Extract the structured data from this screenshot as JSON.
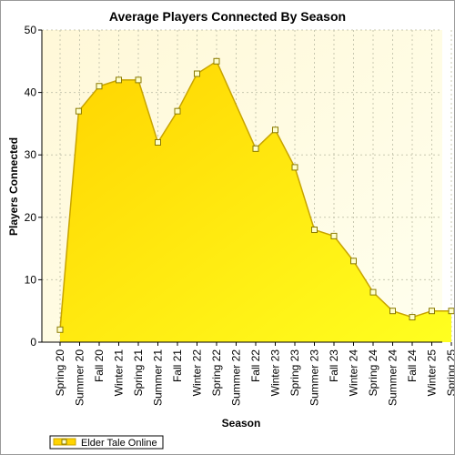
{
  "chart_data": {
    "type": "area",
    "title": "Average Players Connected By Season",
    "xlabel": "Season",
    "ylabel": "Players Connected",
    "ylim": [
      0,
      50
    ],
    "yticks": [
      0,
      10,
      20,
      30,
      40,
      50
    ],
    "grid": true,
    "legend_position": "bottom-left",
    "categories": [
      "Spring 20",
      "Summer 20",
      "Fall 20",
      "Winter 21",
      "Spring 21",
      "Summer 21",
      "Fall 21",
      "Winter 22",
      "Spring 22",
      "Summer 22",
      "Fall 22",
      "Winter 23",
      "Spring 23",
      "Summer 23",
      "Fall 23",
      "Winter 24",
      "Spring 24",
      "Summer 24",
      "Fall 24",
      "Winter 25",
      "Spring 25"
    ],
    "series": [
      {
        "name": "Elder Tale Online",
        "points": [
          {
            "x": 0,
            "y": 2
          },
          {
            "x": 0.95,
            "y": 37
          },
          {
            "x": 2,
            "y": 41
          },
          {
            "x": 3,
            "y": 42
          },
          {
            "x": 4,
            "y": 42
          },
          {
            "x": 5,
            "y": 32
          },
          {
            "x": 6,
            "y": 37
          },
          {
            "x": 7,
            "y": 43
          },
          {
            "x": 8,
            "y": 45
          },
          {
            "x": 10,
            "y": 31
          },
          {
            "x": 11,
            "y": 34
          },
          {
            "x": 12,
            "y": 28
          },
          {
            "x": 13,
            "y": 18
          },
          {
            "x": 14,
            "y": 17
          },
          {
            "x": 15,
            "y": 13
          },
          {
            "x": 16,
            "y": 8
          },
          {
            "x": 17,
            "y": 5
          },
          {
            "x": 18,
            "y": 4
          },
          {
            "x": 19,
            "y": 5
          },
          {
            "x": 20,
            "y": 5
          }
        ]
      }
    ],
    "colors": {
      "area_top": "#ffd400",
      "area_bottom": "#ffff20",
      "line": "#c8a400",
      "marker_fill": "#ffffcc",
      "marker_stroke": "#8a7a00",
      "plot_bg": "#fffde6",
      "grid": "#c8c8b0"
    }
  }
}
